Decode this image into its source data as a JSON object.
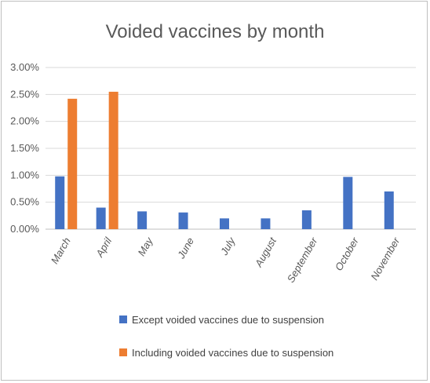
{
  "chart_data": {
    "type": "bar",
    "title": "Voided vaccines by month",
    "xlabel": "",
    "ylabel": "",
    "categories": [
      "March",
      "April",
      "May",
      "June",
      "July",
      "August",
      "September",
      "October",
      "November"
    ],
    "series": [
      {
        "name": "Except voided vaccines due to suspension",
        "color": "#4472c4",
        "values": [
          0.98,
          0.4,
          0.33,
          0.31,
          0.2,
          0.2,
          0.35,
          0.97,
          0.7
        ]
      },
      {
        "name": "Including voided vaccines due to suspension",
        "color": "#ed7d31",
        "values": [
          2.42,
          2.55,
          null,
          null,
          null,
          null,
          null,
          null,
          null
        ]
      }
    ],
    "ylim": [
      0,
      3
    ],
    "yticks": [
      0,
      0.5,
      1,
      1.5,
      2,
      2.5,
      3
    ],
    "ytick_labels": [
      "0.00%",
      "0.50%",
      "1.00%",
      "1.50%",
      "2.00%",
      "2.50%",
      "3.00%"
    ],
    "y_unit": "%",
    "grid": true,
    "legend_position": "bottom"
  }
}
